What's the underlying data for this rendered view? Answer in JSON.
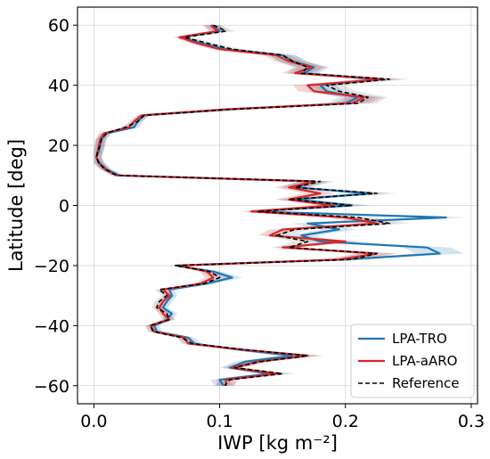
{
  "chart_data": {
    "type": "line",
    "orientation": "horizontal-profile",
    "xlabel": "IWP [kg m⁻²]",
    "ylabel": "Latitude [deg]",
    "xlim": [
      -0.013,
      0.305
    ],
    "ylim": [
      -66,
      66
    ],
    "xticks": [
      "0.0",
      "0.1",
      "0.2",
      "0.3"
    ],
    "yticks": [
      "60",
      "40",
      "20",
      "0",
      "−20",
      "−40",
      "−60"
    ],
    "grid": true,
    "legend_position": "lower-right",
    "series": [
      {
        "name": "LPA-TRO",
        "color": "#1f77b4",
        "style": "solid",
        "y": [
          60,
          58,
          56,
          54,
          52,
          50,
          48,
          46,
          44,
          42,
          40,
          38,
          36,
          34,
          32,
          30,
          28,
          26,
          24,
          22,
          20,
          18,
          16,
          14,
          12,
          10,
          8,
          6,
          4,
          2,
          0,
          -2,
          -4,
          -6,
          -8,
          -10,
          -12,
          -14,
          -16,
          -18,
          -20,
          -22,
          -24,
          -26,
          -28,
          -30,
          -32,
          -34,
          -36,
          -38,
          -40,
          -42,
          -44,
          -46,
          -48,
          -50,
          -52,
          -54,
          -56,
          -58,
          -60
        ],
        "x": [
          0.094,
          0.1,
          0.07,
          0.085,
          0.105,
          0.15,
          0.158,
          0.175,
          0.167,
          0.225,
          0.18,
          0.185,
          0.21,
          0.2,
          0.11,
          0.04,
          0.035,
          0.032,
          0.01,
          0.006,
          0.005,
          0.004,
          0.002,
          0.005,
          0.01,
          0.02,
          0.175,
          0.16,
          0.22,
          0.16,
          0.205,
          0.127,
          0.28,
          0.17,
          0.195,
          0.165,
          0.18,
          0.265,
          0.275,
          0.2,
          0.065,
          0.095,
          0.11,
          0.09,
          0.06,
          0.062,
          0.058,
          0.055,
          0.062,
          0.058,
          0.048,
          0.05,
          0.075,
          0.08,
          0.115,
          0.158,
          0.12,
          0.108,
          0.14,
          0.1,
          0.103
        ]
      },
      {
        "name": "LPA-aARO",
        "color": "#d62728",
        "style": "solid",
        "y": [
          60,
          58,
          56,
          54,
          52,
          50,
          48,
          46,
          44,
          42,
          40,
          38,
          36,
          34,
          32,
          30,
          28,
          26,
          24,
          22,
          20,
          18,
          16,
          14,
          12,
          10,
          8,
          6,
          4,
          2,
          0,
          -2,
          -4,
          -6,
          -8,
          -10,
          -12,
          -14,
          -16,
          -18,
          -20,
          -22,
          -24,
          -26,
          -28,
          -30,
          -32,
          -34,
          -36,
          -38,
          -40,
          -42,
          -44,
          -46,
          -48,
          -50,
          -52,
          -54,
          -56,
          -58,
          -60
        ],
        "x": [
          0.093,
          0.098,
          0.068,
          0.082,
          0.1,
          0.145,
          0.155,
          0.173,
          0.16,
          0.23,
          0.17,
          0.175,
          0.215,
          0.205,
          0.105,
          0.038,
          0.032,
          0.028,
          0.008,
          0.005,
          0.004,
          0.003,
          0.002,
          0.004,
          0.009,
          0.018,
          0.175,
          0.155,
          0.18,
          0.155,
          0.19,
          0.125,
          0.2,
          0.225,
          0.15,
          0.14,
          0.2,
          0.15,
          0.225,
          0.195,
          0.068,
          0.09,
          0.095,
          0.085,
          0.055,
          0.06,
          0.055,
          0.052,
          0.055,
          0.06,
          0.045,
          0.048,
          0.072,
          0.075,
          0.118,
          0.17,
          0.13,
          0.11,
          0.145,
          0.105,
          0.105
        ]
      },
      {
        "name": "Reference",
        "color": "#000000",
        "style": "dashed",
        "y": [
          60,
          58,
          56,
          54,
          52,
          50,
          48,
          46,
          44,
          42,
          40,
          38,
          36,
          34,
          32,
          30,
          28,
          26,
          24,
          22,
          20,
          18,
          16,
          14,
          12,
          10,
          8,
          6,
          4,
          2,
          0,
          -2,
          -4,
          -6,
          -8,
          -10,
          -12,
          -14,
          -16,
          -18,
          -20,
          -22,
          -24,
          -26,
          -28,
          -30,
          -32,
          -34,
          -36,
          -38,
          -40,
          -42,
          -44,
          -46,
          -48,
          -50,
          -52,
          -54,
          -56,
          -58,
          -60
        ],
        "x": [
          0.095,
          0.105,
          0.072,
          0.09,
          0.11,
          0.15,
          0.158,
          0.17,
          0.165,
          0.235,
          0.185,
          0.195,
          0.218,
          0.21,
          0.11,
          0.04,
          0.035,
          0.025,
          0.01,
          0.006,
          0.005,
          0.003,
          0.002,
          0.004,
          0.009,
          0.018,
          0.18,
          0.16,
          0.225,
          0.155,
          0.205,
          0.13,
          0.21,
          0.235,
          0.16,
          0.145,
          0.17,
          0.155,
          0.225,
          0.205,
          0.065,
          0.092,
          0.1,
          0.088,
          0.052,
          0.058,
          0.052,
          0.05,
          0.058,
          0.06,
          0.045,
          0.047,
          0.07,
          0.078,
          0.12,
          0.17,
          0.132,
          0.112,
          0.15,
          0.108,
          0.104
        ]
      }
    ]
  }
}
